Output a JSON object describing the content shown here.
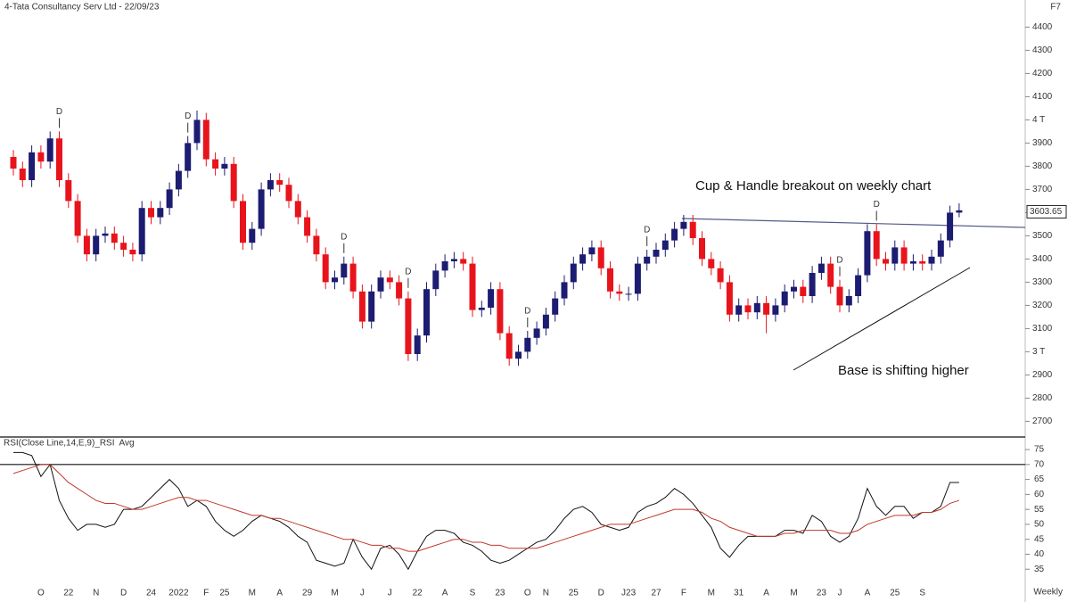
{
  "chart_data": [
    {
      "type": "candlestick",
      "title": "4-Tata Consultancy Serv Ltd - 22/09/23",
      "corner_label": "F7",
      "period_label": "Weekly",
      "up_color": "#1c1c72",
      "down_color": "#e8141c",
      "categories": [
        null,
        null,
        null,
        "O",
        null,
        null,
        "22",
        null,
        null,
        "N",
        null,
        null,
        "D",
        null,
        null,
        "24",
        null,
        null,
        "2022",
        null,
        null,
        "F",
        null,
        "25",
        null,
        null,
        "M",
        null,
        null,
        "A",
        null,
        null,
        "29",
        null,
        null,
        "M",
        null,
        null,
        "J",
        null,
        null,
        "J",
        null,
        null,
        "22",
        null,
        null,
        "A",
        null,
        null,
        "S",
        null,
        null,
        "23",
        null,
        null,
        "O",
        null,
        "N",
        null,
        null,
        "25",
        null,
        null,
        "D",
        null,
        null,
        "J23",
        null,
        null,
        "27",
        null,
        null,
        "F",
        null,
        null,
        "M",
        null,
        null,
        "31",
        null,
        null,
        "A",
        null,
        null,
        "M",
        null,
        null,
        "23",
        null,
        "J",
        null,
        null,
        "A",
        null,
        null,
        "25",
        null,
        null,
        "S",
        null,
        null,
        null,
        null
      ],
      "open": [
        3840,
        3790,
        3740,
        3860,
        3820,
        3920,
        3740,
        3650,
        3500,
        3420,
        3500,
        3510,
        3470,
        3440,
        3420,
        3620,
        3580,
        3620,
        3700,
        3780,
        3900,
        4000,
        3830,
        3790,
        3810,
        3650,
        3470,
        3530,
        3700,
        3740,
        3720,
        3650,
        3580,
        3500,
        3420,
        3300,
        3320,
        3380,
        3260,
        3130,
        3260,
        3320,
        3300,
        3230,
        2990,
        3070,
        3270,
        3350,
        3390,
        3400,
        3380,
        3180,
        3190,
        3270,
        3080,
        2970,
        3000,
        3060,
        3100,
        3160,
        3230,
        3300,
        3380,
        3420,
        3450,
        3360,
        3260,
        3250,
        3250,
        3380,
        3410,
        3440,
        3480,
        3530,
        3560,
        3490,
        3400,
        3360,
        3300,
        3160,
        3200,
        3170,
        3210,
        3160,
        3200,
        3260,
        3280,
        3240,
        3340,
        3380,
        3280,
        3200,
        3240,
        3330,
        3520,
        3400,
        3380,
        3450,
        3380,
        3390,
        3380,
        3410,
        3480,
        3600
      ],
      "high": [
        3870,
        3820,
        3890,
        3890,
        3950,
        3950,
        3770,
        3680,
        3530,
        3530,
        3540,
        3540,
        3500,
        3470,
        3650,
        3650,
        3650,
        3730,
        3810,
        3930,
        4040,
        4030,
        3860,
        3840,
        3840,
        3680,
        3560,
        3730,
        3770,
        3770,
        3750,
        3680,
        3610,
        3530,
        3450,
        3350,
        3410,
        3410,
        3290,
        3290,
        3350,
        3350,
        3330,
        3260,
        3100,
        3300,
        3380,
        3420,
        3430,
        3430,
        3410,
        3220,
        3300,
        3300,
        3110,
        3030,
        3090,
        3130,
        3190,
        3260,
        3330,
        3410,
        3450,
        3480,
        3480,
        3390,
        3290,
        3280,
        3410,
        3440,
        3470,
        3510,
        3560,
        3590,
        3590,
        3520,
        3430,
        3390,
        3330,
        3230,
        3230,
        3240,
        3240,
        3230,
        3290,
        3310,
        3310,
        3370,
        3410,
        3410,
        3310,
        3270,
        3360,
        3550,
        3550,
        3430,
        3480,
        3480,
        3420,
        3420,
        3440,
        3510,
        3630,
        3640
      ],
      "low": [
        3760,
        3710,
        3710,
        3790,
        3790,
        3710,
        3620,
        3470,
        3390,
        3390,
        3470,
        3440,
        3410,
        3390,
        3390,
        3550,
        3550,
        3590,
        3670,
        3750,
        3870,
        3800,
        3760,
        3760,
        3620,
        3440,
        3440,
        3500,
        3670,
        3690,
        3620,
        3550,
        3470,
        3390,
        3270,
        3270,
        3290,
        3230,
        3100,
        3100,
        3230,
        3270,
        3200,
        2960,
        2960,
        3040,
        3240,
        3320,
        3360,
        3350,
        3150,
        3150,
        3160,
        3050,
        2940,
        2940,
        2970,
        3030,
        3070,
        3130,
        3200,
        3270,
        3350,
        3390,
        3330,
        3230,
        3220,
        3220,
        3220,
        3350,
        3380,
        3410,
        3450,
        3500,
        3460,
        3370,
        3330,
        3270,
        3130,
        3130,
        3140,
        3140,
        3080,
        3130,
        3170,
        3230,
        3210,
        3210,
        3310,
        3250,
        3170,
        3170,
        3210,
        3300,
        3370,
        3350,
        3350,
        3350,
        3350,
        3350,
        3350,
        3380,
        3450,
        3580
      ],
      "close": [
        3790,
        3740,
        3860,
        3820,
        3920,
        3740,
        3650,
        3500,
        3420,
        3500,
        3510,
        3470,
        3440,
        3420,
        3620,
        3580,
        3620,
        3700,
        3780,
        3900,
        4000,
        3830,
        3790,
        3810,
        3650,
        3470,
        3530,
        3700,
        3740,
        3720,
        3650,
        3580,
        3500,
        3420,
        3300,
        3320,
        3380,
        3260,
        3130,
        3260,
        3320,
        3300,
        3230,
        2990,
        3070,
        3270,
        3350,
        3390,
        3400,
        3380,
        3180,
        3190,
        3270,
        3080,
        2970,
        3000,
        3060,
        3100,
        3160,
        3230,
        3300,
        3380,
        3420,
        3450,
        3360,
        3260,
        3250,
        3250,
        3380,
        3410,
        3440,
        3480,
        3530,
        3560,
        3490,
        3400,
        3360,
        3300,
        3160,
        3200,
        3170,
        3210,
        3160,
        3200,
        3260,
        3280,
        3240,
        3340,
        3380,
        3280,
        3200,
        3240,
        3330,
        3520,
        3400,
        3380,
        3450,
        3380,
        3390,
        3380,
        3410,
        3480,
        3600,
        3610
      ],
      "last_price": 3603.65,
      "ylim": [
        2640,
        4440
      ],
      "yticks": [
        4400,
        4300,
        4200,
        4100,
        {
          "value": 4000,
          "label": "4 T"
        },
        3900,
        3800,
        3700,
        3600,
        3500,
        3400,
        3300,
        3200,
        3100,
        {
          "value": 3000,
          "label": "3 T"
        },
        2900,
        2800,
        2700
      ],
      "markers": [
        {
          "label": "D",
          "index": 5
        },
        {
          "label": "D",
          "index": 19
        },
        {
          "label": "D",
          "index": 36
        },
        {
          "label": "D",
          "index": 43
        },
        {
          "label": "D",
          "index": 56
        },
        {
          "label": "D",
          "index": 69
        },
        {
          "label": "D",
          "index": 90
        },
        {
          "label": "D",
          "index": 94
        }
      ],
      "annotations": [
        "Cup & Handle breakout on weekly chart",
        "Base is shifting higher"
      ]
    },
    {
      "type": "line",
      "series": [
        {
          "name": "RSI(Close Line,14,E,9)_RSI",
          "color": "#111111",
          "values": [
            74,
            74,
            73,
            66,
            70,
            58,
            52,
            48,
            50,
            50,
            49,
            50,
            55,
            55,
            56,
            59,
            62,
            65,
            62,
            56,
            58,
            56,
            51,
            48,
            46,
            48,
            51,
            53,
            52,
            51,
            49,
            46,
            44,
            38,
            37,
            36,
            37,
            45,
            39,
            35,
            42,
            43,
            40,
            35,
            41,
            46,
            48,
            48,
            47,
            44,
            43,
            41,
            38,
            37,
            38,
            40,
            42,
            44,
            45,
            48,
            52,
            55,
            56,
            54,
            50,
            49,
            48,
            49,
            54,
            56,
            57,
            59,
            62,
            60,
            57,
            53,
            49,
            42,
            39,
            43,
            46,
            46,
            46,
            46,
            48,
            48,
            47,
            53,
            51,
            46,
            44,
            46,
            52,
            62,
            56,
            53,
            56,
            56,
            52,
            54,
            54,
            56,
            64,
            64
          ]
        },
        {
          "name": "Avg",
          "color": "#c0392b",
          "values": [
            67,
            68,
            69,
            70,
            70,
            67,
            64,
            62,
            60,
            58,
            57,
            57,
            56,
            55,
            55,
            56,
            57,
            58,
            59,
            59,
            58,
            58,
            57,
            56,
            55,
            54,
            53,
            53,
            52,
            52,
            51,
            50,
            49,
            48,
            47,
            46,
            45,
            45,
            44,
            43,
            43,
            42,
            42,
            41,
            41,
            42,
            43,
            44,
            45,
            45,
            44,
            44,
            43,
            43,
            42,
            42,
            42,
            42,
            43,
            44,
            45,
            46,
            47,
            48,
            49,
            50,
            50,
            50,
            51,
            52,
            53,
            54,
            55,
            55,
            55,
            54,
            52,
            51,
            49,
            48,
            47,
            46,
            46,
            46,
            47,
            47,
            48,
            48,
            48,
            48,
            47,
            47,
            48,
            50,
            51,
            52,
            53,
            53,
            53,
            54,
            54,
            55,
            57,
            58
          ]
        }
      ],
      "hline": 70,
      "ylim": [
        30,
        78
      ],
      "yticks": [
        75,
        70,
        65,
        60,
        55,
        50,
        45,
        40,
        35
      ]
    }
  ]
}
